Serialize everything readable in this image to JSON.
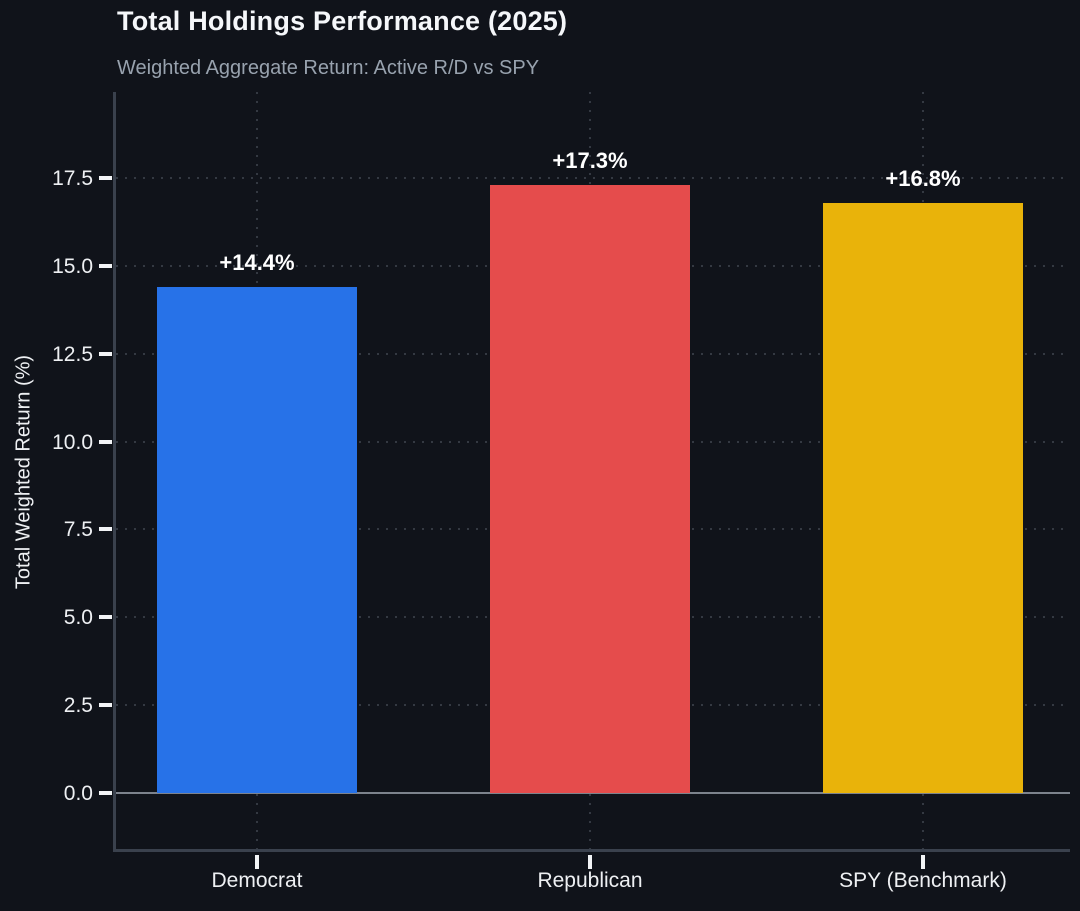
{
  "chart_data": {
    "type": "bar",
    "title": "Total Holdings Performance (2025)",
    "subtitle": "Weighted Aggregate Return: Active R/D vs SPY",
    "ylabel": "Total Weighted Return (%)",
    "xlabel": "",
    "categories": [
      "Democrat",
      "Republican",
      "SPY (Benchmark)"
    ],
    "values": [
      14.4,
      17.3,
      16.8
    ],
    "bar_labels": [
      "+14.4%",
      "+17.3%",
      "+16.8%"
    ],
    "bar_colors": [
      "#2772e8",
      "#e54c4c",
      "#e9b30a"
    ],
    "yticks": [
      0.0,
      2.5,
      5.0,
      7.5,
      10.0,
      12.5,
      15.0,
      17.5
    ],
    "ytick_labels": [
      "0.0",
      "2.5",
      "5.0",
      "7.5",
      "10.0",
      "12.5",
      "15.0",
      "17.5"
    ],
    "ylim": [
      -1.7,
      19.9
    ],
    "grid": "dotted horizontal and vertical at bar centers",
    "legend": "none",
    "theme": {
      "background": "#10131a",
      "title_color": "#f5f7fa",
      "subtitle_color": "#98a2ae",
      "tick_text_color": "#eef0f3",
      "spine_color": "#3a414d",
      "zero_line_color": "#7d838d",
      "grid_color": "#9ca5b4"
    }
  }
}
